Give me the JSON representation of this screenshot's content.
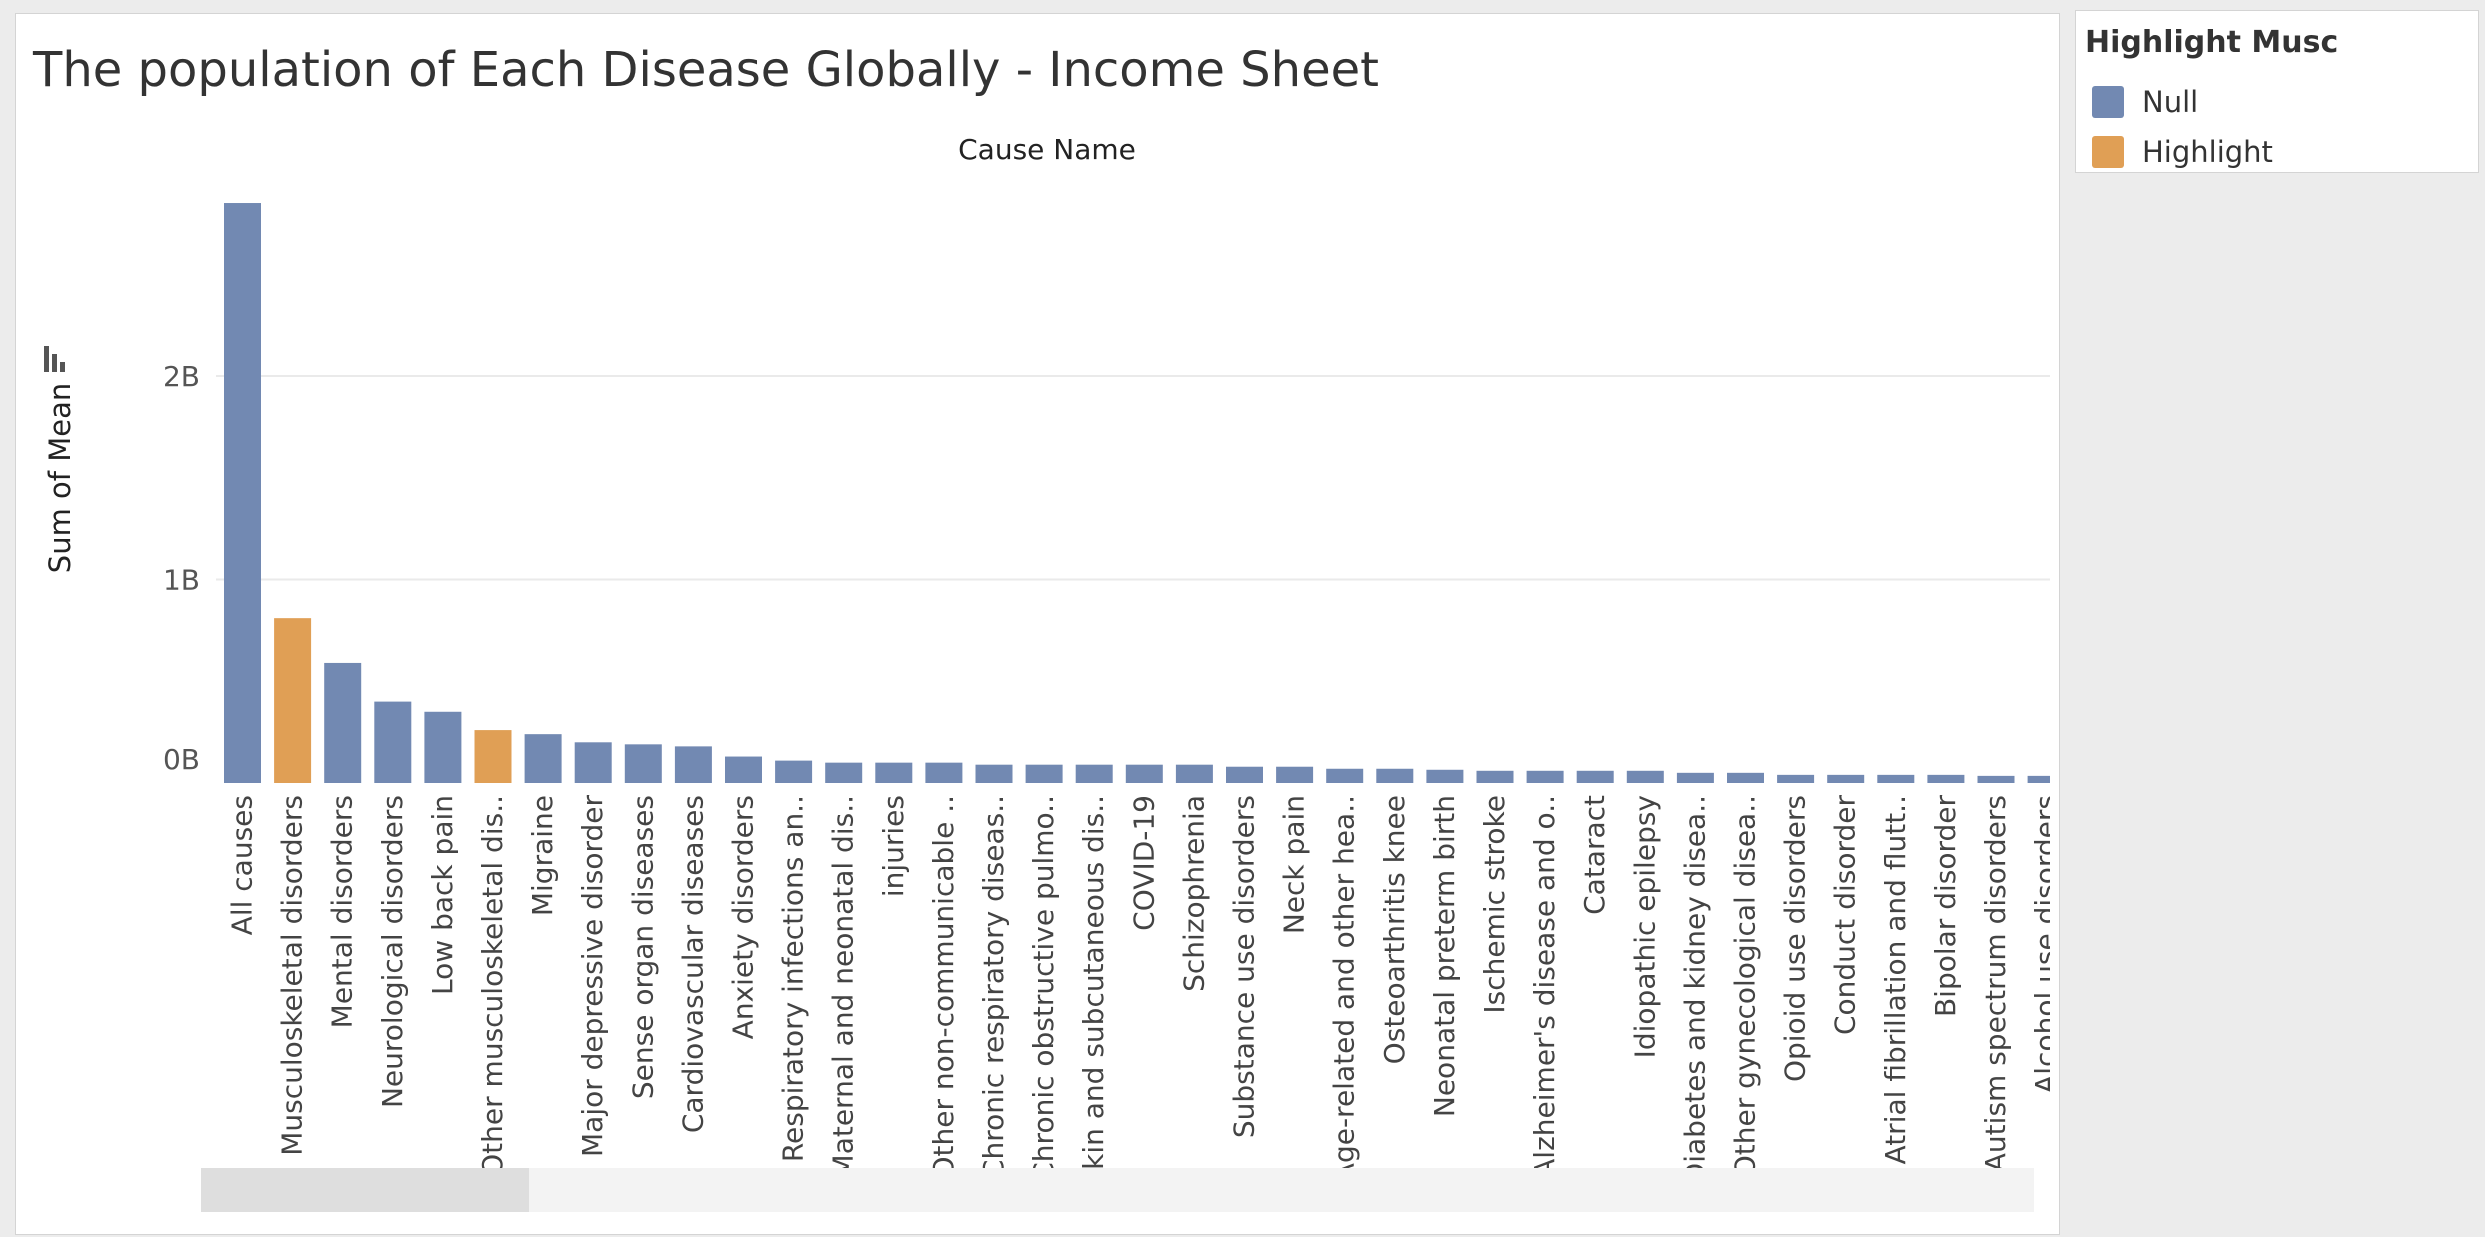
{
  "title": "The population of Each Disease Globally - Income Sheet",
  "legend": {
    "title": "Highlight Musc",
    "items": [
      {
        "label": "Null",
        "color": "#7289b2"
      },
      {
        "label": "Highlight",
        "color": "#e09f55"
      }
    ]
  },
  "chart_data": {
    "type": "bar",
    "title": "The population of Each Disease Globally - Income Sheet",
    "xlabel": "Cause Name",
    "ylabel": "Sum of Mean",
    "yticks": [
      {
        "value": 0,
        "label": "0B"
      },
      {
        "value": 1000000000,
        "label": "1B"
      },
      {
        "value": 2000000000,
        "label": "2B"
      }
    ],
    "ylim": [
      -50000000,
      3000000000
    ],
    "grid": true,
    "legend_position": "right",
    "categories": [
      "All causes",
      "Musculoskeletal disorders",
      "Mental disorders",
      "Neurological disorders",
      "Low back pain",
      "Other musculoskeletal dis..",
      "Migraine",
      "Major depressive disorder",
      "Sense organ diseases",
      "Cardiovascular diseases",
      "Anxiety disorders",
      "Respiratory infections an..",
      "Maternal and neonatal dis..",
      "injuries",
      "Other non-communicable ..",
      "Chronic respiratory diseas..",
      "Chronic obstructive pulmo..",
      "Skin and subcutaneous dis..",
      "COVID-19",
      "Schizophrenia",
      "Substance use disorders",
      "Neck pain",
      "Age-related and other hea..",
      "Osteoarthritis knee",
      "Neonatal preterm birth",
      "Ischemic stroke",
      "Alzheimer's disease and o..",
      "Cataract",
      "Idiopathic epilepsy",
      "Diabetes and kidney disea..",
      "Other gynecological disea..",
      "Opioid use disorders",
      "Conduct disorder",
      "Atrial fibrillation and flutt..",
      "Bipolar disorder",
      "Autism spectrum disorders",
      "Alcohol use disorders"
    ],
    "values": [
      2850000000,
      810000000,
      590000000,
      400000000,
      350000000,
      260000000,
      240000000,
      200000000,
      190000000,
      180000000,
      130000000,
      110000000,
      100000000,
      100000000,
      100000000,
      90000000,
      90000000,
      90000000,
      90000000,
      90000000,
      80000000,
      80000000,
      70000000,
      70000000,
      65000000,
      60000000,
      60000000,
      60000000,
      60000000,
      50000000,
      50000000,
      40000000,
      40000000,
      40000000,
      40000000,
      35000000,
      35000000
    ],
    "highlight": [
      false,
      true,
      false,
      false,
      false,
      true,
      false,
      false,
      false,
      false,
      false,
      false,
      false,
      false,
      false,
      false,
      false,
      false,
      false,
      false,
      false,
      false,
      false,
      false,
      false,
      false,
      false,
      false,
      false,
      false,
      false,
      false,
      false,
      false,
      false,
      false,
      false
    ]
  }
}
